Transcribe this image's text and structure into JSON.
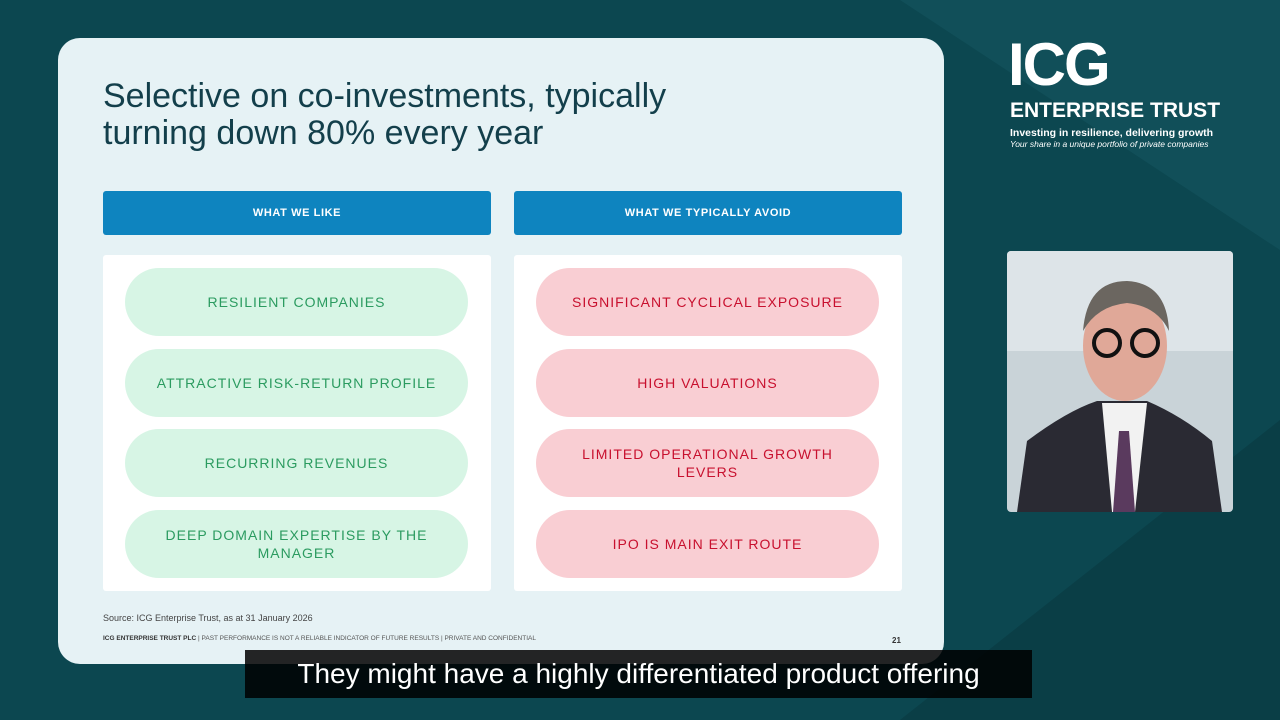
{
  "slide": {
    "title_lines": [
      "Selective on co-investments, typically",
      "turning down 80% every year"
    ],
    "columns": [
      {
        "header": "WHAT WE LIKE",
        "items": [
          "RESILIENT COMPANIES",
          "ATTRACTIVE RISK-RETURN PROFILE",
          "RECURRING REVENUES",
          "DEEP DOMAIN EXPERTISE BY THE MANAGER"
        ]
      },
      {
        "header": "WHAT WE TYPICALLY AVOID",
        "items": [
          "SIGNIFICANT CYCLICAL EXPOSURE",
          "HIGH VALUATIONS",
          "LIMITED OPERATIONAL GROWTH LEVERS",
          "IPO IS MAIN EXIT ROUTE"
        ]
      }
    ],
    "source": "Source: ICG Enterprise Trust, as at 31 January 2026",
    "footer": [
      "ICG ENTERPRISE TRUST PLC",
      "PAST PERFORMANCE IS NOT A RELIABLE INDICATOR OF FUTURE RESULTS",
      "PRIVATE AND CONFIDENTIAL"
    ],
    "page_number": "21"
  },
  "logo": {
    "mark": "ICG",
    "name": "ENTERPRISE TRUST",
    "tagline": "Investing in resilience, delivering growth",
    "subline": "Your share in a unique portfolio of private companies"
  },
  "caption": "They might have a highly differentiated product offering"
}
